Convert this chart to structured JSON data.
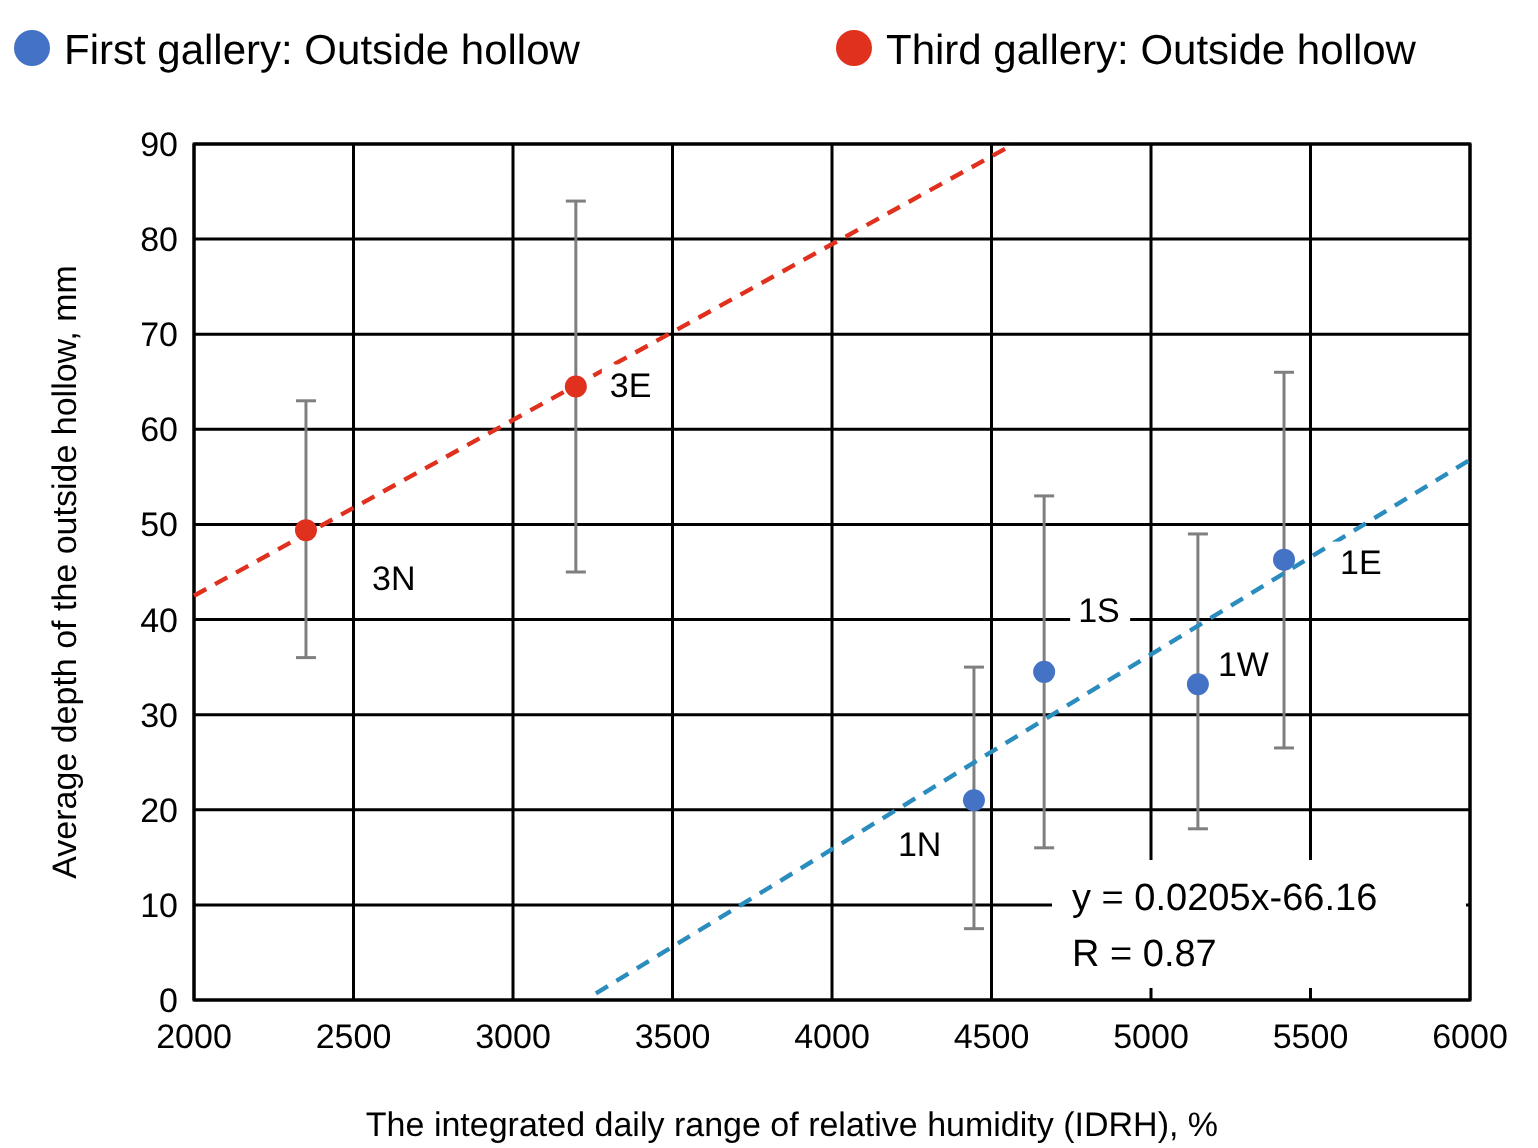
{
  "chart_data": {
    "type": "scatter",
    "xlabel": "The integrated daily range of relative humidity (IDRH), %",
    "ylabel": "Average depth of the outside hollow, mm",
    "xlim": [
      2000,
      6000
    ],
    "xticks": [
      2000,
      2500,
      3000,
      3500,
      4000,
      4500,
      5000,
      5500,
      6000
    ],
    "ylim": [
      0,
      90
    ],
    "yticks": [
      0,
      10,
      20,
      30,
      40,
      50,
      60,
      70,
      80,
      90
    ],
    "grid": true,
    "legend": "top",
    "marker": "circle",
    "series": [
      {
        "name": "First gallery: Outside hollow",
        "color": "#4472c4",
        "x": [
          4445,
          4665,
          5147,
          5417
        ],
        "values": [
          21,
          34.5,
          33.2,
          46.3
        ],
        "errors": [
          [
            7.5,
            35
          ],
          [
            16,
            53
          ],
          [
            18,
            49
          ],
          [
            26.5,
            66
          ]
        ]
      },
      {
        "name": "Third gallery: Outside hollow",
        "color": "#e0301e",
        "x": [
          2351,
          3197
        ],
        "values": [
          49.4,
          64.5
        ],
        "errors": [
          [
            36,
            63
          ],
          [
            45,
            84
          ]
        ]
      },
      {
        "type": "line",
        "color": "#2b8cbe",
        "line_style": "dashed",
        "marker": "none",
        "x": [
          3260,
          6000
        ],
        "values": [
          0.7,
          56.8
        ]
      },
      {
        "type": "line",
        "color": "#e0301e",
        "line_style": "dashed",
        "marker": "none",
        "x": [
          2000,
          4570
        ],
        "values": [
          42.5,
          90
        ]
      }
    ],
    "annotations": [
      {
        "text": "3N",
        "x": 2351,
        "y": 49.4
      },
      {
        "text": "3E",
        "x": 3197,
        "y": 64.5
      },
      {
        "text": "1N",
        "x": 4445,
        "y": 21
      },
      {
        "text": "1S",
        "x": 4665,
        "y": 34.5
      },
      {
        "text": "1W",
        "x": 5147,
        "y": 33.2
      },
      {
        "text": "1E",
        "x": 5417,
        "y": 46.3
      },
      "y = 0.0205x-66.16",
      "R = 0.87"
    ]
  }
}
